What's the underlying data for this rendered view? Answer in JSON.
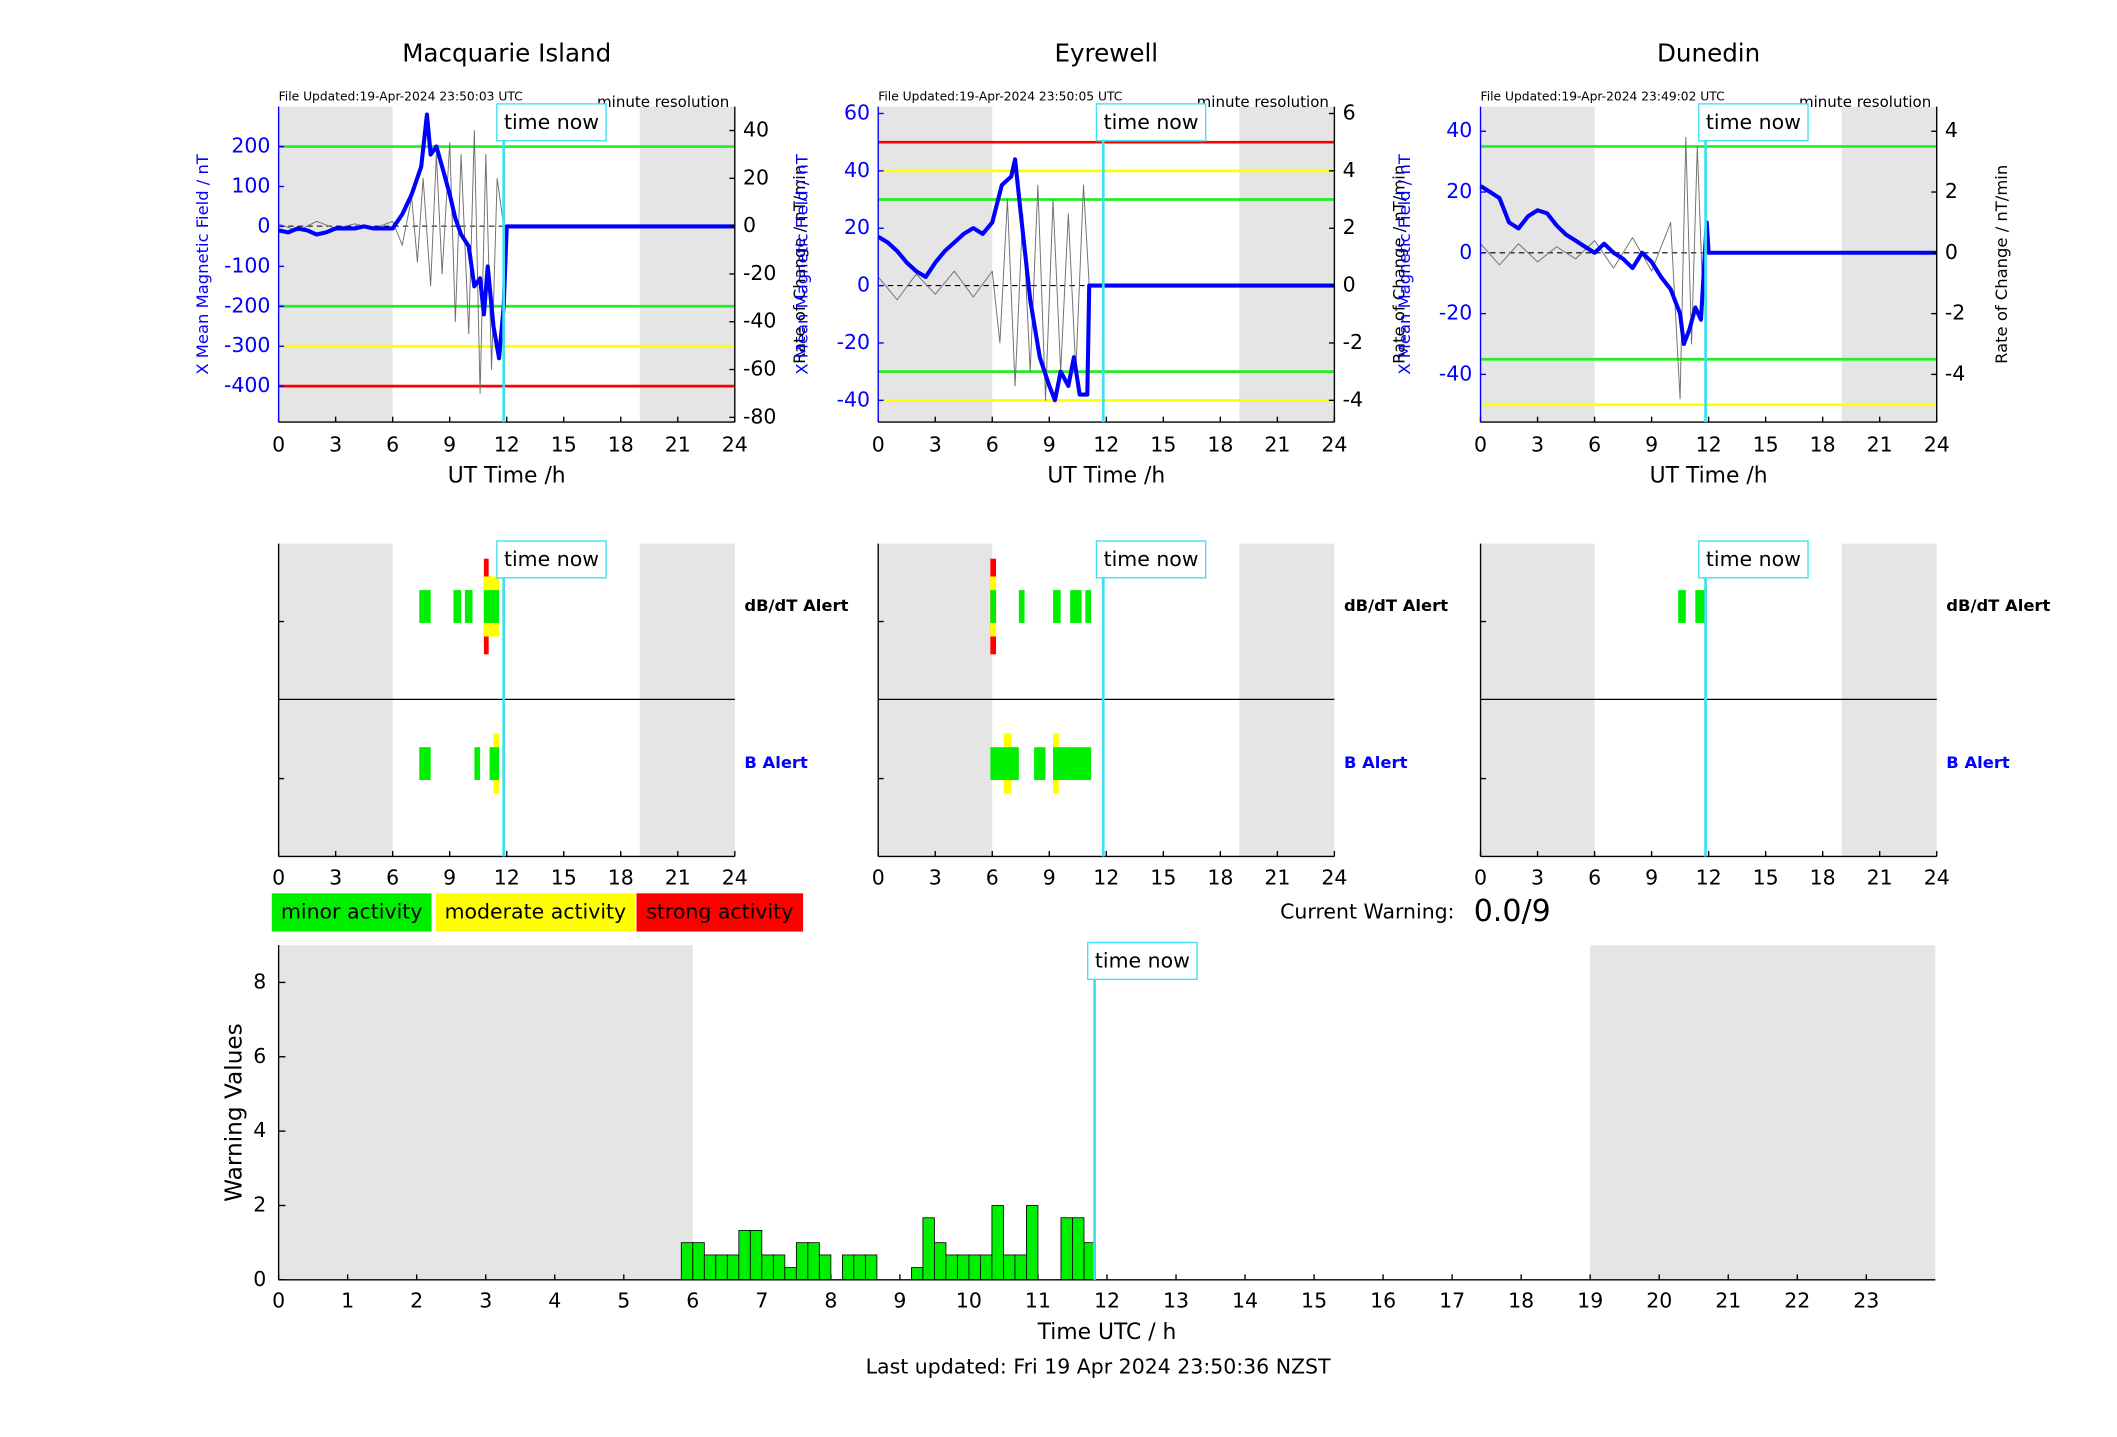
{
  "chart_data": [
    {
      "type": "line",
      "title": "Macquarie Island",
      "file_updated": "File Updated:19-Apr-2024 23:50:03 UTC",
      "resolution": "minute resolution",
      "xlabel": "UT Time /h",
      "ylabel": "X Mean Magnetic Field / nT",
      "y2label": "Rate of Change / nT/min",
      "xlim": [
        0,
        24
      ],
      "xticks": [
        0,
        3,
        6,
        9,
        12,
        15,
        18,
        21,
        24
      ],
      "ylim": [
        -490,
        300
      ],
      "yticks": [
        -400,
        -300,
        -200,
        -100,
        0,
        100,
        200
      ],
      "y2lim": [
        -82,
        50
      ],
      "y2ticks": [
        -80,
        -60,
        -40,
        -20,
        0,
        20,
        40
      ],
      "shaded": [
        [
          0,
          6
        ],
        [
          19,
          24
        ]
      ],
      "time_now": 11.84,
      "time_now_label": "time now",
      "thresholds": [
        {
          "value": 200,
          "color": "#22ee22"
        },
        {
          "value": -200,
          "color": "#22ee22"
        },
        {
          "value": -300,
          "color": "#ffff00"
        },
        {
          "value": -400,
          "color": "#ff0000"
        }
      ],
      "series": [
        {
          "color": "#0000ff",
          "x": [
            0,
            0.5,
            1,
            1.5,
            2,
            2.5,
            3,
            3.5,
            4,
            4.5,
            5,
            5.5,
            6,
            6.5,
            7,
            7.5,
            7.8,
            8,
            8.3,
            8.6,
            9,
            9.3,
            9.6,
            10,
            10.3,
            10.6,
            10.8,
            11,
            11.3,
            11.6,
            11.84,
            12,
            24
          ],
          "values": [
            -10,
            -15,
            -5,
            -10,
            -20,
            -15,
            -5,
            -5,
            -5,
            0,
            -5,
            -5,
            -5,
            30,
            80,
            150,
            280,
            180,
            200,
            150,
            80,
            20,
            -20,
            -50,
            -150,
            -130,
            -220,
            -100,
            -250,
            -330,
            -200,
            0,
            0
          ]
        },
        {
          "color": "#707070",
          "axis": "y2",
          "x": [
            0,
            1,
            2,
            3,
            4,
            5,
            6,
            6.5,
            7,
            7.3,
            7.6,
            8,
            8.3,
            8.6,
            9,
            9.3,
            9.6,
            10,
            10.3,
            10.6,
            10.9,
            11.2,
            11.5,
            11.84
          ],
          "values": [
            1,
            -2,
            2,
            -1,
            1,
            -1,
            2,
            -8,
            12,
            -15,
            20,
            -25,
            30,
            -20,
            35,
            -40,
            30,
            -45,
            40,
            -70,
            30,
            -60,
            20,
            0
          ]
        }
      ]
    },
    {
      "type": "line",
      "title": "Eyrewell",
      "file_updated": "File Updated:19-Apr-2024 23:50:05 UTC",
      "resolution": "minute resolution",
      "xlabel": "UT Time /h",
      "ylabel": "X Mean Magnetic Field / nT",
      "y2label": "Rate of Change / nT/min",
      "xlim": [
        0,
        24
      ],
      "xticks": [
        0,
        3,
        6,
        9,
        12,
        15,
        18,
        21,
        24
      ],
      "ylim": [
        -47.6,
        62.4
      ],
      "yticks": [
        -40,
        -20,
        0,
        20,
        40,
        60
      ],
      "y2lim": [
        -4.76,
        6.24
      ],
      "y2ticks": [
        -4,
        -2,
        0,
        2,
        4,
        6
      ],
      "shaded": [
        [
          0,
          6
        ],
        [
          19,
          24
        ]
      ],
      "time_now": 11.84,
      "time_now_label": "time now",
      "thresholds": [
        {
          "value": 50,
          "color": "#ff0000"
        },
        {
          "value": 40,
          "color": "#ffff00"
        },
        {
          "value": 30,
          "color": "#22ee22"
        },
        {
          "value": -30,
          "color": "#22ee22"
        },
        {
          "value": -40,
          "color": "#ffff00"
        }
      ],
      "series": [
        {
          "color": "#0000ff",
          "x": [
            0,
            0.5,
            1,
            1.5,
            2,
            2.5,
            3,
            3.5,
            4,
            4.5,
            5,
            5.5,
            6,
            6.5,
            7,
            7.2,
            7.5,
            8,
            8.5,
            9,
            9.3,
            9.6,
            10,
            10.3,
            10.6,
            11,
            11.1,
            24
          ],
          "values": [
            17,
            15,
            12,
            8,
            5,
            3,
            8,
            12,
            15,
            18,
            20,
            18,
            22,
            35,
            38,
            44,
            25,
            -5,
            -25,
            -35,
            -40,
            -30,
            -35,
            -25,
            -38,
            -38,
            0,
            0
          ]
        },
        {
          "color": "#707070",
          "axis": "y2",
          "x": [
            0,
            1,
            2,
            3,
            4,
            5,
            6,
            6.4,
            6.8,
            7.2,
            7.6,
            8,
            8.4,
            8.8,
            9.2,
            9.6,
            10,
            10.4,
            10.8,
            11.1
          ],
          "values": [
            0.3,
            -0.5,
            0.4,
            -0.3,
            0.5,
            -0.4,
            0.5,
            -2,
            3,
            -3.5,
            2.5,
            -3,
            3.5,
            -4,
            3,
            -3,
            2.5,
            -3,
            3.5,
            0
          ]
        }
      ]
    },
    {
      "type": "line",
      "title": "Dunedin",
      "file_updated": "File Updated:19-Apr-2024 23:49:02 UTC",
      "resolution": "minute resolution",
      "xlabel": "UT Time /h",
      "ylabel": "X Mean Magnetic Field / nT",
      "y2label": "Rate of Change / nT/min",
      "xlim": [
        0,
        24
      ],
      "xticks": [
        0,
        3,
        6,
        9,
        12,
        15,
        18,
        21,
        24
      ],
      "ylim": [
        -55.7,
        48.1
      ],
      "yticks": [
        -40,
        -20,
        0,
        20,
        40
      ],
      "y2lim": [
        -5.57,
        4.81
      ],
      "y2ticks": [
        -4,
        -2,
        0,
        2,
        4
      ],
      "shaded": [
        [
          0,
          6
        ],
        [
          19,
          24
        ]
      ],
      "time_now": 11.84,
      "time_now_label": "time now",
      "thresholds": [
        {
          "value": 35,
          "color": "#22ee22"
        },
        {
          "value": -35,
          "color": "#22ee22"
        },
        {
          "value": -50,
          "color": "#ffff00"
        }
      ],
      "series": [
        {
          "color": "#0000ff",
          "x": [
            0,
            0.5,
            1,
            1.5,
            2,
            2.5,
            3,
            3.5,
            4,
            4.5,
            5,
            5.5,
            6,
            6.5,
            7,
            7.5,
            8,
            8.5,
            9,
            9.5,
            10,
            10.5,
            10.7,
            11,
            11.3,
            11.6,
            11.9,
            12,
            24
          ],
          "values": [
            22,
            20,
            18,
            10,
            8,
            12,
            14,
            13,
            9,
            6,
            4,
            2,
            0,
            3,
            0,
            -2,
            -5,
            0,
            -3,
            -8,
            -12,
            -20,
            -30,
            -25,
            -18,
            -22,
            10,
            0,
            0
          ]
        },
        {
          "color": "#707070",
          "axis": "y2",
          "x": [
            0,
            1,
            2,
            3,
            4,
            5,
            6,
            7,
            8,
            9,
            10,
            10.5,
            10.8,
            11.1,
            11.4,
            11.7,
            11.9
          ],
          "values": [
            0.3,
            -0.4,
            0.3,
            -0.3,
            0.2,
            -0.2,
            0.4,
            -0.5,
            0.5,
            -0.6,
            1,
            -4.8,
            3.8,
            -3,
            3.5,
            -1.5,
            0
          ]
        }
      ]
    },
    {
      "type": "alert",
      "xlim": [
        0,
        24
      ],
      "xticks": [
        0,
        3,
        6,
        9,
        12,
        15,
        18,
        21,
        24
      ],
      "shaded": [
        [
          0,
          6
        ],
        [
          19,
          24
        ]
      ],
      "time_now": 11.84,
      "time_now_label": "time now",
      "rows": [
        {
          "label": "dB/dT Alert",
          "color": "#000000",
          "segments": [
            {
              "x": [
                10.8,
                11.05
              ],
              "level": 2
            },
            {
              "x": [
                10.8,
                11.6
              ],
              "level": 1
            },
            {
              "x": [
                7.4,
                8.0
              ],
              "level": 0
            },
            {
              "x": [
                9.2,
                9.6
              ],
              "level": 0
            },
            {
              "x": [
                9.8,
                10.2
              ],
              "level": 0
            },
            {
              "x": [
                10.8,
                11.6
              ],
              "level": 0
            }
          ]
        },
        {
          "label": "B Alert",
          "color": "#0000ff",
          "segments": [
            {
              "x": [
                11.3,
                11.6
              ],
              "level": 1
            },
            {
              "x": [
                7.4,
                8.0
              ],
              "level": 0
            },
            {
              "x": [
                10.3,
                10.6
              ],
              "level": 0
            },
            {
              "x": [
                11.1,
                11.6
              ],
              "level": 0
            }
          ]
        }
      ]
    },
    {
      "type": "alert",
      "xlim": [
        0,
        24
      ],
      "xticks": [
        0,
        3,
        6,
        9,
        12,
        15,
        18,
        21,
        24
      ],
      "shaded": [
        [
          0,
          6
        ],
        [
          19,
          24
        ]
      ],
      "time_now": 11.84,
      "time_now_label": "time now",
      "rows": [
        {
          "label": "dB/dT Alert",
          "color": "#000000",
          "segments": [
            {
              "x": [
                5.9,
                6.2
              ],
              "level": 2
            },
            {
              "x": [
                5.9,
                6.2
              ],
              "level": 1
            },
            {
              "x": [
                5.9,
                6.2
              ],
              "level": 0
            },
            {
              "x": [
                7.4,
                7.7
              ],
              "level": 0
            },
            {
              "x": [
                9.2,
                9.6
              ],
              "level": 0
            },
            {
              "x": [
                10.1,
                10.7
              ],
              "level": 0
            },
            {
              "x": [
                10.9,
                11.2
              ],
              "level": 0
            }
          ]
        },
        {
          "label": "B Alert",
          "color": "#0000ff",
          "segments": [
            {
              "x": [
                6.6,
                7.0
              ],
              "level": 1
            },
            {
              "x": [
                9.2,
                9.5
              ],
              "level": 1
            },
            {
              "x": [
                5.9,
                7.4
              ],
              "level": 0
            },
            {
              "x": [
                8.2,
                8.8
              ],
              "level": 0
            },
            {
              "x": [
                9.2,
                11.2
              ],
              "level": 0
            }
          ]
        }
      ]
    },
    {
      "type": "alert",
      "xlim": [
        0,
        24
      ],
      "xticks": [
        0,
        3,
        6,
        9,
        12,
        15,
        18,
        21,
        24
      ],
      "shaded": [
        [
          0,
          6
        ],
        [
          19,
          24
        ]
      ],
      "time_now": 11.84,
      "time_now_label": "time now",
      "rows": [
        {
          "label": "dB/dT Alert",
          "color": "#000000",
          "segments": [
            {
              "x": [
                10.4,
                10.8
              ],
              "level": 0
            },
            {
              "x": [
                11.3,
                11.9
              ],
              "level": 0
            }
          ]
        },
        {
          "label": "B Alert",
          "color": "#0000ff",
          "segments": []
        }
      ]
    },
    {
      "type": "histogram",
      "xlabel": "Time UTC / h",
      "ylabel": "Warning Values",
      "xlim": [
        0,
        24
      ],
      "xticks": [
        0,
        1,
        2,
        3,
        4,
        5,
        6,
        7,
        8,
        9,
        10,
        11,
        12,
        13,
        14,
        15,
        16,
        17,
        18,
        19,
        20,
        21,
        22,
        23
      ],
      "ylim": [
        0,
        9
      ],
      "yticks": [
        0,
        2,
        4,
        6,
        8
      ],
      "shaded": [
        [
          0,
          6
        ],
        [
          19,
          24
        ]
      ],
      "time_now": 11.82,
      "time_now_label": "time now",
      "color": "#00ee00",
      "bins": [
        5.833,
        6,
        6.167,
        6.333,
        6.5,
        6.667,
        6.833,
        7,
        7.167,
        7.333,
        7.5,
        7.667,
        7.833,
        8,
        8.167,
        8.333,
        8.5,
        8.667,
        8.833,
        9,
        9.167,
        9.333,
        9.5,
        9.667,
        9.833,
        10,
        10.167,
        10.333,
        10.5,
        10.667,
        10.833,
        11,
        11.167,
        11.333,
        11.5,
        11.667,
        11.833
      ],
      "values": [
        1,
        1,
        0.67,
        0.67,
        0.67,
        1.33,
        1.33,
        0.67,
        0.67,
        0.33,
        1,
        1,
        0.67,
        0,
        0.67,
        0.67,
        0.67,
        0,
        0,
        0,
        0.33,
        1.67,
        1,
        0.67,
        0.67,
        0.67,
        0.67,
        2,
        0.67,
        0.67,
        2,
        0,
        0,
        1.67,
        1.67,
        1
      ]
    }
  ],
  "activity_levels": [
    {
      "label": "minor activity",
      "color": "#00ee00"
    },
    {
      "label": "moderate activity",
      "color": "#ffff00"
    },
    {
      "label": "strong activity",
      "color": "#ff0000"
    }
  ],
  "current_warning": {
    "label": "Current Warning:",
    "value": "0.0/9"
  },
  "last_updated": "Last updated: Fri 19 Apr 2024 23:50:36 NZST"
}
